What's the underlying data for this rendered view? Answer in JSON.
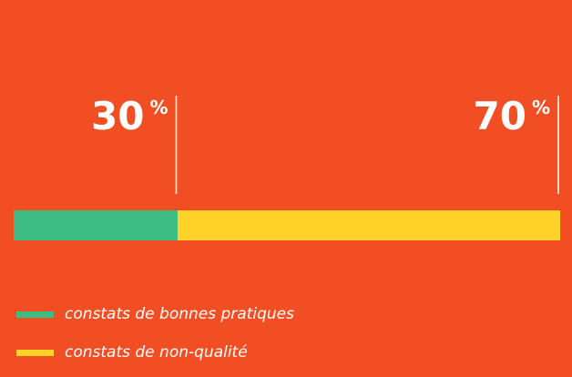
{
  "chart_data": {
    "type": "bar",
    "orientation": "horizontal",
    "stacked": true,
    "unit": "%",
    "series": [
      {
        "name": "constats de bonnes pratiques",
        "value": 30,
        "color": "#3DBD84"
      },
      {
        "name": "constats de non-qualité",
        "value": 70,
        "color": "#FFD22A"
      }
    ],
    "xlim": [
      0,
      100
    ],
    "legend": "bottom-left",
    "background_color": "#F24E23"
  }
}
